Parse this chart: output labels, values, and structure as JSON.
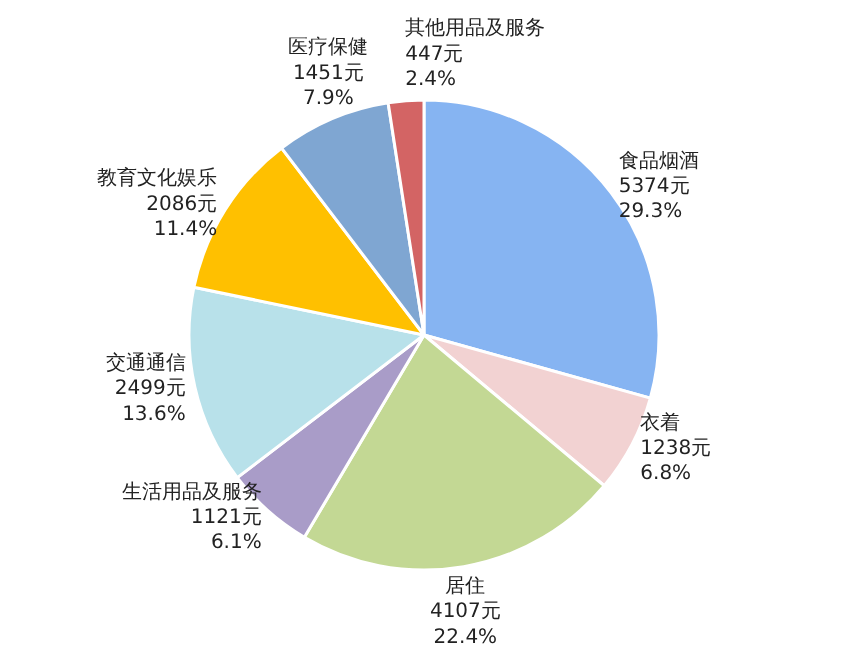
{
  "chart_data": {
    "type": "pie",
    "categories": [
      "食品烟酒",
      "衣着",
      "居住",
      "生活用品及服务",
      "交通通信",
      "教育文化娱乐",
      "医疗保健",
      "其他用品及服务"
    ],
    "values": [
      5374,
      1238,
      4107,
      1121,
      2499,
      2086,
      1451,
      447
    ],
    "value_labels": [
      "5374元\n29.3%",
      "1238元\n6.8%",
      "4107元\n22.4%",
      "1121元\n6.1%",
      "2499元\n13.6%",
      "2086元\n11.4%",
      "1451元\n7.9%",
      "447元\n2.4%"
    ],
    "colors": [
      "#86b4f2",
      "#f2d2d2",
      "#c3d894",
      "#a99cc8",
      "#b8e1ea",
      "#ffc000",
      "#7fa6d2",
      "#d36464"
    ],
    "legend": false
  }
}
